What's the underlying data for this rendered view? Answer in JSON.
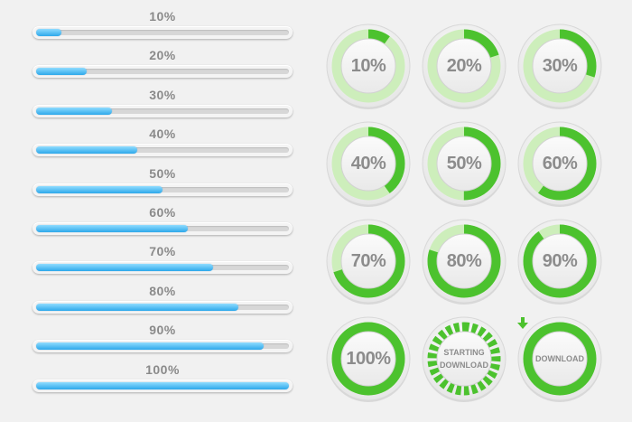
{
  "progress_bars": [
    {
      "label": "10%",
      "value": 0.1
    },
    {
      "label": "20%",
      "value": 0.2
    },
    {
      "label": "30%",
      "value": 0.3
    },
    {
      "label": "40%",
      "value": 0.4
    },
    {
      "label": "50%",
      "value": 0.5
    },
    {
      "label": "60%",
      "value": 0.6
    },
    {
      "label": "70%",
      "value": 0.7
    },
    {
      "label": "80%",
      "value": 0.8
    },
    {
      "label": "90%",
      "value": 0.9
    },
    {
      "label": "100%",
      "value": 1.0
    }
  ],
  "circular_progress": [
    {
      "label": "10%",
      "value": 0.1
    },
    {
      "label": "20%",
      "value": 0.2
    },
    {
      "label": "30%",
      "value": 0.3
    },
    {
      "label": "40%",
      "value": 0.4
    },
    {
      "label": "50%",
      "value": 0.5
    },
    {
      "label": "60%",
      "value": 0.6
    },
    {
      "label": "70%",
      "value": 0.7
    },
    {
      "label": "80%",
      "value": 0.8
    },
    {
      "label": "90%",
      "value": 0.9
    },
    {
      "label": "100%",
      "value": 1.0
    }
  ],
  "starting_download": {
    "line1": "STARTING",
    "line2": "DOWNLOAD"
  },
  "download_button": {
    "label": "DOWNLOAD",
    "icon": "arrow-down-icon"
  },
  "colors": {
    "bar_fill": "#2ea8ea",
    "ring_green": "#4cc22e",
    "ring_light": "#cdeebb",
    "label_gray": "#8c8c8c"
  }
}
